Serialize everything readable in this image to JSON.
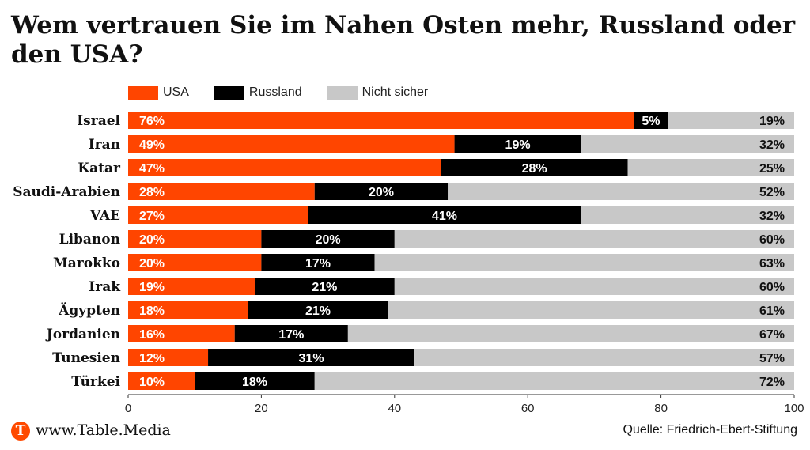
{
  "title": "Wem vertrauen Sie im Nahen Osten mehr, Russland oder den USA?",
  "footer": {
    "logo_letter": "T",
    "site": "www.Table.Media",
    "source": "Quelle: Friedrich-Ebert-Stiftung"
  },
  "colors": {
    "usa": "#ff4500",
    "russland": "#000000",
    "nicht_sicher": "#c8c8c8"
  },
  "chart_data": {
    "type": "bar",
    "orientation": "horizontal",
    "stacked": true,
    "title": "Wem vertrauen Sie im Nahen Osten mehr, Russland oder den USA?",
    "xlim": [
      0,
      100
    ],
    "xticks": [
      0,
      20,
      40,
      60,
      80,
      100
    ],
    "legend_position": "top-left",
    "categories": [
      "Israel",
      "Iran",
      "Katar",
      "Saudi-Arabien",
      "VAE",
      "Libanon",
      "Marokko",
      "Irak",
      "Ägypten",
      "Jordanien",
      "Tunesien",
      "Türkei"
    ],
    "series": [
      {
        "name": "USA",
        "color": "#ff4500",
        "values": [
          76,
          49,
          47,
          28,
          27,
          20,
          20,
          19,
          18,
          16,
          12,
          10
        ]
      },
      {
        "name": "Russland",
        "color": "#000000",
        "values": [
          5,
          19,
          28,
          20,
          41,
          20,
          17,
          21,
          21,
          17,
          31,
          18
        ]
      },
      {
        "name": "Nicht sicher",
        "color": "#c8c8c8",
        "values": [
          19,
          32,
          25,
          52,
          32,
          60,
          63,
          60,
          61,
          67,
          57,
          72
        ]
      }
    ]
  }
}
